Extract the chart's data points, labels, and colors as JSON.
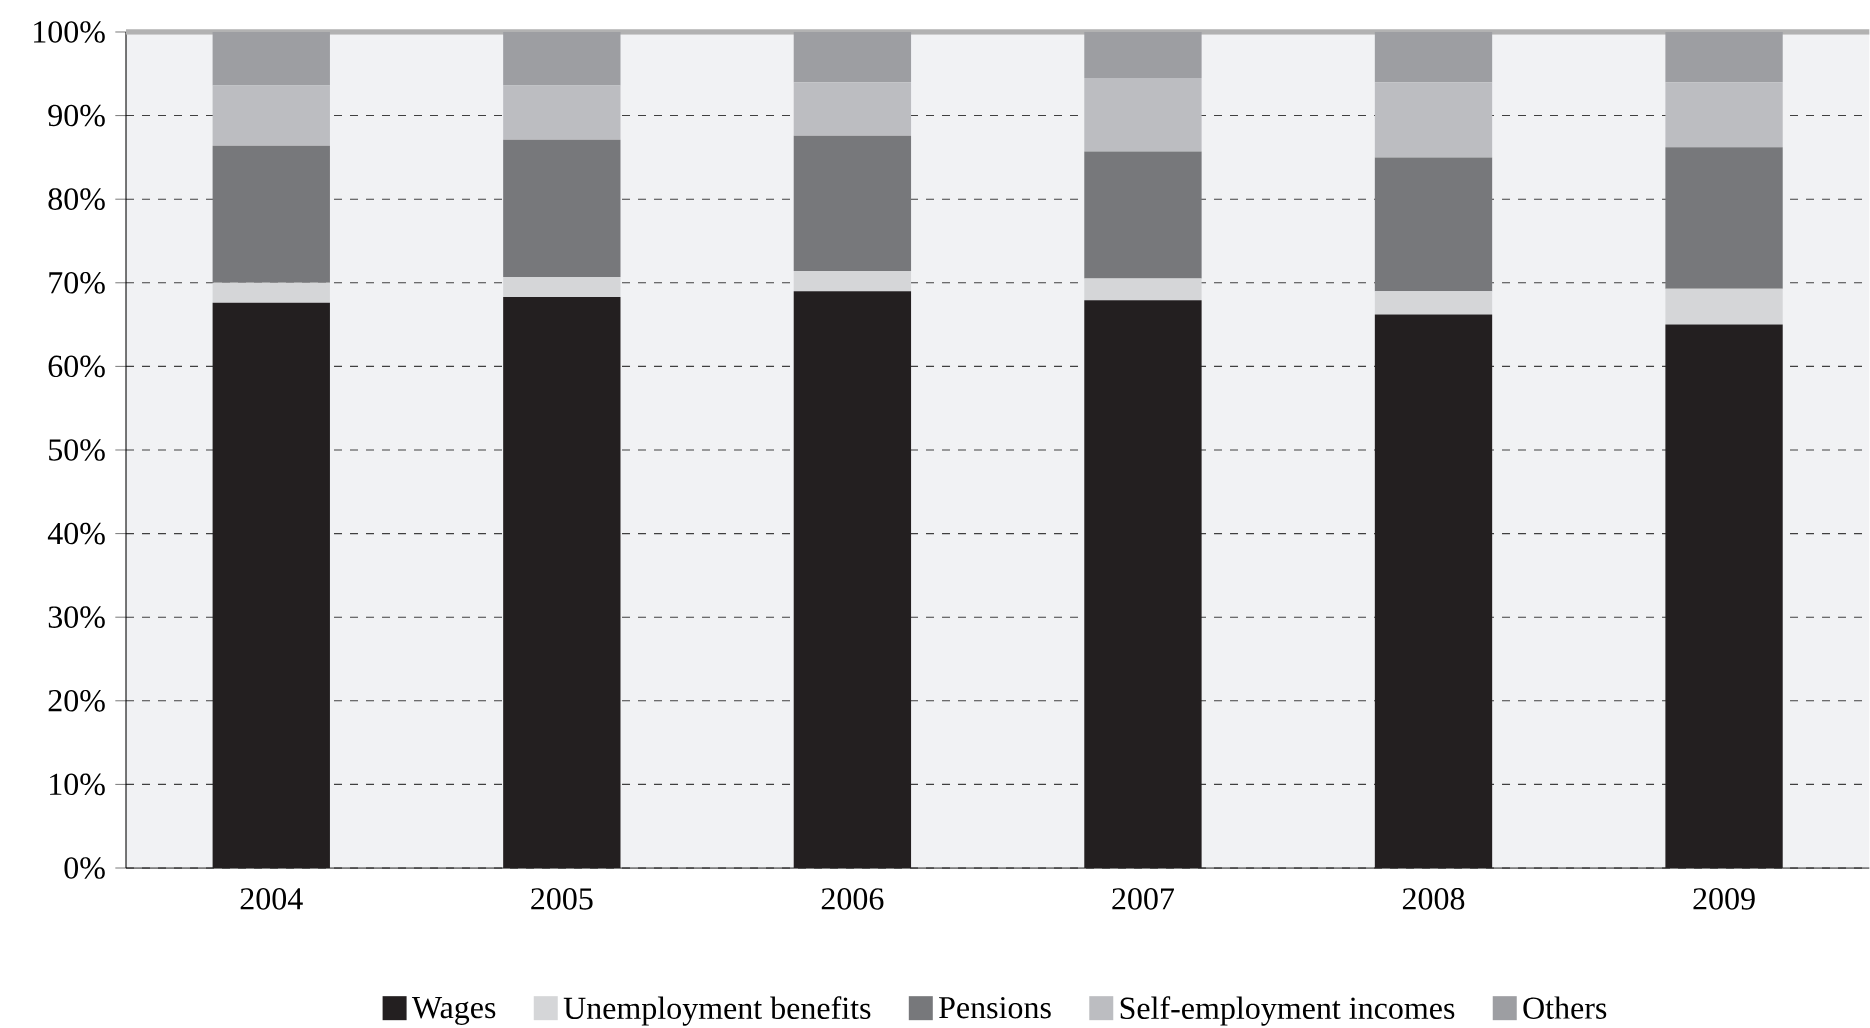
{
  "chart_data": {
    "type": "bar",
    "stacked": true,
    "categories": [
      "2004",
      "2005",
      "2006",
      "2007",
      "2008",
      "2009"
    ],
    "series": [
      {
        "name": "Wages",
        "color": "#231f20",
        "values": [
          67.6,
          68.3,
          69.0,
          67.9,
          66.2,
          65.0
        ]
      },
      {
        "name": "Unemployment benefits",
        "color": "#d5d6d8",
        "values": [
          2.4,
          2.4,
          2.4,
          2.6,
          2.8,
          4.3
        ]
      },
      {
        "name": "Pensions",
        "color": "#77787b",
        "values": [
          16.4,
          16.4,
          16.2,
          15.2,
          16.0,
          16.9
        ]
      },
      {
        "name": "Self-employment incomes",
        "color": "#bcbdc1",
        "values": [
          7.2,
          6.5,
          6.4,
          8.8,
          9.0,
          7.8
        ]
      },
      {
        "name": "Others",
        "color": "#9d9ea2",
        "values": [
          6.4,
          6.4,
          6.0,
          5.5,
          6.0,
          6.0
        ]
      }
    ],
    "ylim": [
      0,
      100
    ],
    "yticks": [
      {
        "value": 0,
        "label": "0%"
      },
      {
        "value": 10,
        "label": "10%"
      },
      {
        "value": 20,
        "label": "20%"
      },
      {
        "value": 30,
        "label": "30%"
      },
      {
        "value": 40,
        "label": "40%"
      },
      {
        "value": 50,
        "label": "50%"
      },
      {
        "value": 60,
        "label": "60%"
      },
      {
        "value": 70,
        "label": "70%"
      },
      {
        "value": 80,
        "label": "80%"
      },
      {
        "value": 90,
        "label": "90%"
      },
      {
        "value": 100,
        "label": "100%"
      }
    ],
    "grid": "y",
    "legend": "bottom"
  }
}
